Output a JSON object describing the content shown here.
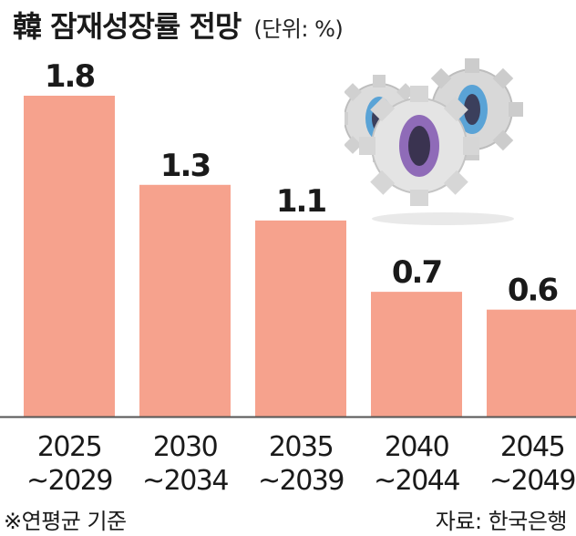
{
  "header": {
    "title": "韓 잠재성장률 전망",
    "unit": "(단위: %)"
  },
  "footer": {
    "note": "※연평균 기준",
    "source": "자료: 한국은행"
  },
  "colors": {
    "bar": "#f6a28d",
    "axis": "#555555",
    "text": "#1a1a1a"
  },
  "chart_data": {
    "type": "bar",
    "title": "韓 잠재성장률 전망",
    "unit": "(단위: %)",
    "categories": [
      [
        "2025",
        "~2029"
      ],
      [
        "2030",
        "~2034"
      ],
      [
        "2035",
        "~2039"
      ],
      [
        "2040",
        "~2044"
      ],
      [
        "2045",
        "~2049"
      ]
    ],
    "values": [
      1.8,
      1.3,
      1.1,
      0.7,
      0.6
    ],
    "value_labels": [
      "1.8",
      "1.3",
      "1.1",
      "0.7",
      "0.6"
    ],
    "ylim": [
      0,
      1.8
    ],
    "grid": false,
    "legend": "none"
  },
  "decoration": {
    "icon": "gears-icon"
  }
}
